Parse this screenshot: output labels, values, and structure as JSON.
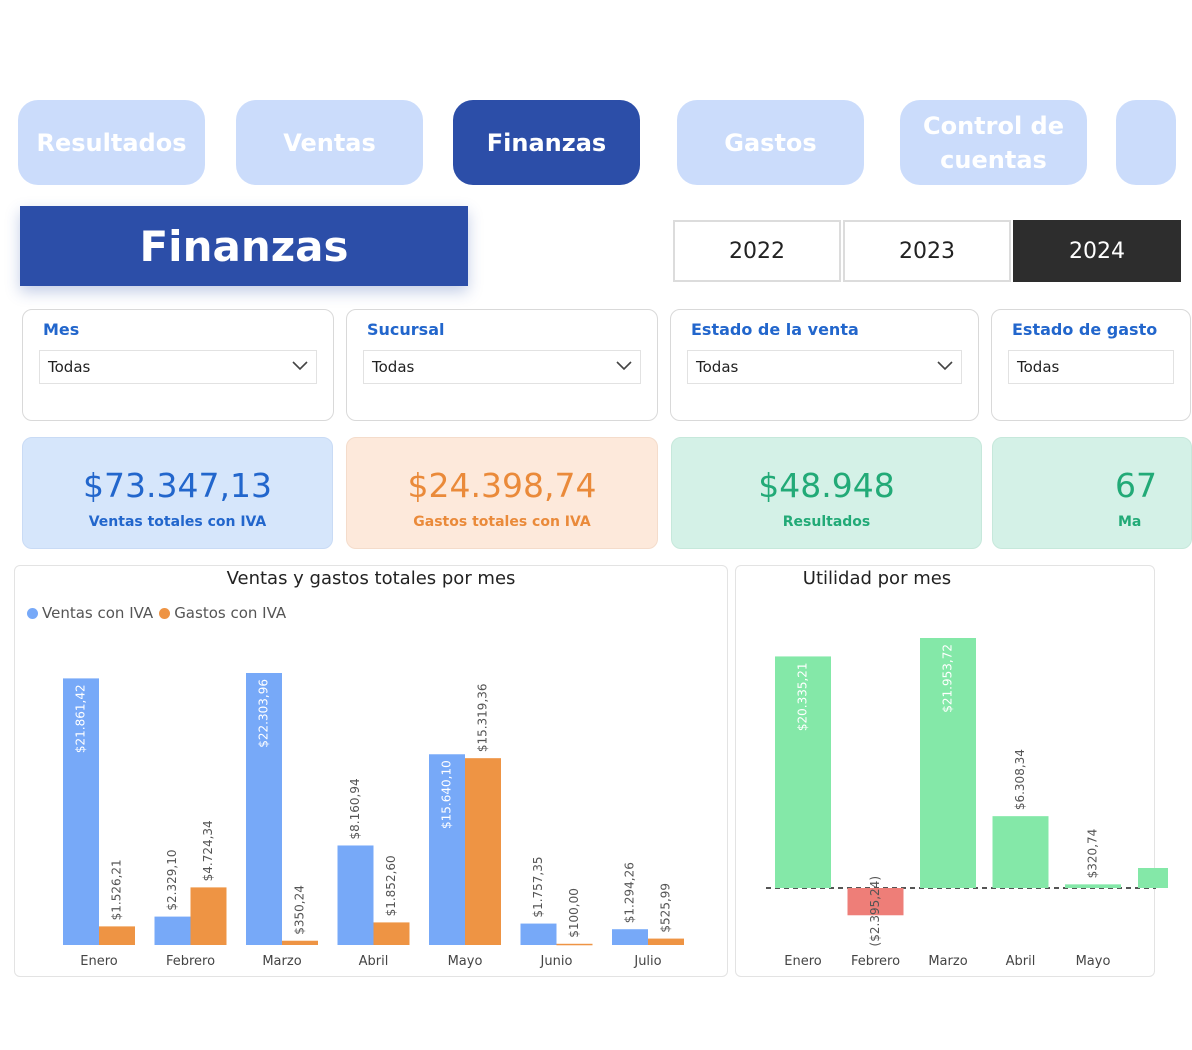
{
  "nav": {
    "tabs": [
      {
        "label": "Resultados",
        "active": false
      },
      {
        "label": "Ventas",
        "active": false
      },
      {
        "label": "Finanzas",
        "active": true
      },
      {
        "label": "Gastos",
        "active": false
      },
      {
        "label": "Control de cuentas",
        "active": false
      },
      {
        "label": "",
        "active": false
      }
    ]
  },
  "page": {
    "title": "Finanzas"
  },
  "years": {
    "options": [
      "2022",
      "2023",
      "2024"
    ],
    "selected": "2024"
  },
  "filters": [
    {
      "label": "Mes",
      "value": "Todas"
    },
    {
      "label": "Sucursal",
      "value": "Todas"
    },
    {
      "label": "Estado de la venta",
      "value": "Todas"
    },
    {
      "label": "Estado de gasto",
      "value": "Todas"
    }
  ],
  "kpis": [
    {
      "value": "$73.347,13",
      "label": "Ventas totales con IVA",
      "color": "#2266cc",
      "bg": "#d6e6fb"
    },
    {
      "value": "$24.398,74",
      "label": "Gastos totales con IVA",
      "color": "#ea8a3a",
      "bg": "#fde9db"
    },
    {
      "value": "$48.948",
      "label": "Resultados",
      "color": "#22aa77",
      "bg": "#d4f1e7"
    },
    {
      "value": "67",
      "label": "Ma",
      "color": "#22aa77",
      "bg": "#d4f1e7"
    }
  ],
  "chart_data": [
    {
      "type": "bar",
      "title": "Ventas y gastos totales por mes",
      "categories": [
        "Enero",
        "Febrero",
        "Marzo",
        "Abril",
        "Mayo",
        "Junio",
        "Julio"
      ],
      "series": [
        {
          "name": "Ventas con IVA",
          "color": "#77a9f8",
          "values": [
            21861.42,
            2329.1,
            22303.96,
            8160.94,
            15640.1,
            1757.35,
            1294.26
          ],
          "labels": [
            "$21.861,42",
            "$2.329,10",
            "$22.303,96",
            "$8.160,94",
            "$15.640,10",
            "$1.757,35",
            "$1.294,26"
          ]
        },
        {
          "name": "Gastos con IVA",
          "color": "#ee9444",
          "values": [
            1526.21,
            4724.34,
            350.24,
            1852.6,
            15319.36,
            100.0,
            525.99
          ],
          "labels": [
            "$1.526,21",
            "$4.724,34",
            "$350,24",
            "$1.852,60",
            "$15.319,36",
            "$100,00",
            "$525,99"
          ]
        }
      ],
      "legend": "top-left",
      "grid": false
    },
    {
      "type": "bar",
      "title": "Utilidad por mes",
      "categories": [
        "Enero",
        "Febrero",
        "Marzo",
        "Abril",
        "Mayo"
      ],
      "values": [
        20335.21,
        -2395.24,
        21953.72,
        6308.34,
        320.74
      ],
      "labels": [
        "$20.335,21",
        "($2.395,24)",
        "$21.953,72",
        "$6.308,34",
        "$320,74"
      ],
      "positive_color": "#84e8a8",
      "negative_color": "#ee7e78",
      "zero_line": "dashed",
      "grid": false
    }
  ]
}
